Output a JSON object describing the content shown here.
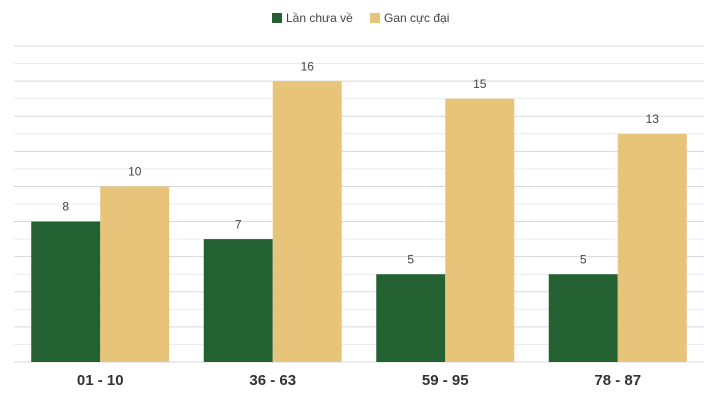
{
  "chart_data": {
    "type": "bar",
    "categories": [
      "01 - 10",
      "36 - 63",
      "59 - 95",
      "78 - 87"
    ],
    "series": [
      {
        "name": "Lần chưa về",
        "color": "#236133",
        "values": [
          8,
          7,
          5,
          5
        ]
      },
      {
        "name": "Gan cực đại",
        "color": "#e8c47b",
        "values": [
          10,
          16,
          15,
          13
        ]
      }
    ],
    "ylim": [
      0,
      18
    ],
    "yticks": [
      0,
      1,
      2,
      3,
      4,
      5,
      6,
      7,
      8,
      9,
      10,
      11,
      12,
      13,
      14,
      15,
      16,
      17,
      18
    ],
    "grid": true,
    "legend": "top"
  }
}
